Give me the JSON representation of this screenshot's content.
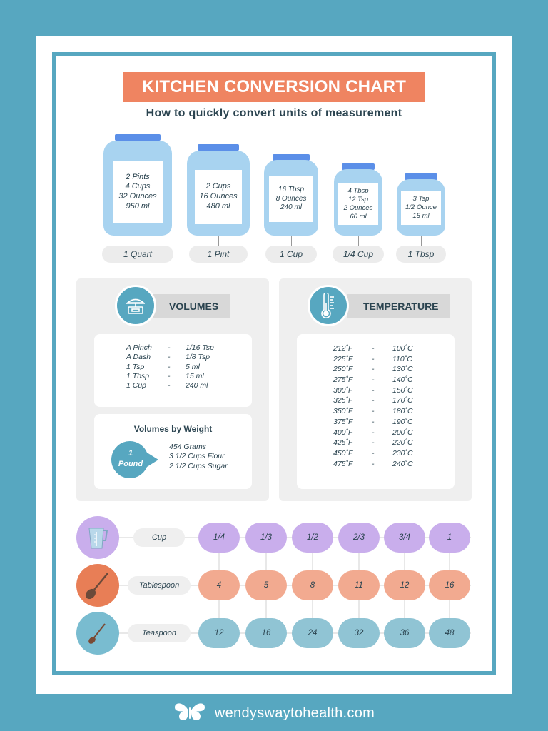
{
  "header": {
    "title": "KITCHEN CONVERSION CHART",
    "subtitle": "How to quickly convert units of measurement"
  },
  "colors": {
    "background": "#57a7c0",
    "title_bar": "#ef8461",
    "jar": "#a8d3f0",
    "jar_lid": "#5b8fe8",
    "cup_row": "#c9aeec",
    "tablespoon_row": "#f2aa90",
    "teaspoon_row": "#90c4d4",
    "text": "#2b4450"
  },
  "jars": [
    {
      "name": "1 Quart",
      "lines": [
        "2 Pints",
        "4 Cups",
        "32 Ounces",
        "950 ml"
      ]
    },
    {
      "name": "1 Pint",
      "lines": [
        "2 Cups",
        "16 Ounces",
        "480 ml"
      ]
    },
    {
      "name": "1 Cup",
      "lines": [
        "16 Tbsp",
        "8 Ounces",
        "240 ml"
      ]
    },
    {
      "name": "1/4 Cup",
      "lines": [
        "4 Tbsp",
        "12 Tsp",
        "2 Ounces",
        "60 ml"
      ]
    },
    {
      "name": "1 Tbsp",
      "lines": [
        "3 Tsp",
        "1/2 Ounce",
        "15 ml"
      ]
    }
  ],
  "volumes": {
    "title": "VOLUMES",
    "icon": "scale-icon",
    "rows": [
      {
        "from": "A Pinch",
        "sep": "-",
        "to": "1/16 Tsp"
      },
      {
        "from": "A Dash",
        "sep": "-",
        "to": "1/8 Tsp"
      },
      {
        "from": "1 Tsp",
        "sep": "-",
        "to": "5 ml"
      },
      {
        "from": "1 Tbsp",
        "sep": "-",
        "to": "15 ml"
      },
      {
        "from": "1 Cup",
        "sep": "-",
        "to": "240 ml"
      }
    ],
    "by_weight": {
      "title": "Volumes by Weight",
      "badge_line1": "1",
      "badge_line2": "Pound",
      "items": [
        "454 Grams",
        "3 1/2 Cups Flour",
        "2 1/2 Cups Sugar"
      ]
    }
  },
  "temperature": {
    "title": "TEMPERATURE",
    "icon": "thermometer-icon",
    "rows": [
      {
        "f": "212˚F",
        "sep": "-",
        "c": "100˚C"
      },
      {
        "f": "225˚F",
        "sep": "-",
        "c": "110˚C"
      },
      {
        "f": "250˚F",
        "sep": "-",
        "c": "130˚C"
      },
      {
        "f": "275˚F",
        "sep": "-",
        "c": "140˚C"
      },
      {
        "f": "300˚F",
        "sep": "-",
        "c": "150˚C"
      },
      {
        "f": "325˚F",
        "sep": "-",
        "c": "170˚C"
      },
      {
        "f": "350˚F",
        "sep": "-",
        "c": "180˚C"
      },
      {
        "f": "375˚F",
        "sep": "-",
        "c": "190˚C"
      },
      {
        "f": "400˚F",
        "sep": "-",
        "c": "200˚C"
      },
      {
        "f": "425˚F",
        "sep": "-",
        "c": "220˚C"
      },
      {
        "f": "450˚F",
        "sep": "-",
        "c": "230˚C"
      },
      {
        "f": "475˚F",
        "sep": "-",
        "c": "240˚C"
      }
    ]
  },
  "spoon_table": {
    "rows": [
      {
        "label": "Cup",
        "icon": "measuring-cup-icon",
        "values": [
          "1/4",
          "1/3",
          "1/2",
          "2/3",
          "3/4",
          "1"
        ]
      },
      {
        "label": "Tablespoon",
        "icon": "tablespoon-icon",
        "values": [
          "4",
          "5",
          "8",
          "11",
          "12",
          "16"
        ]
      },
      {
        "label": "Teaspoon",
        "icon": "teaspoon-icon",
        "values": [
          "12",
          "16",
          "24",
          "32",
          "36",
          "48"
        ]
      }
    ]
  },
  "footer": {
    "logo": "butterfly-icon",
    "site": "wendyswaytohealth.com"
  }
}
